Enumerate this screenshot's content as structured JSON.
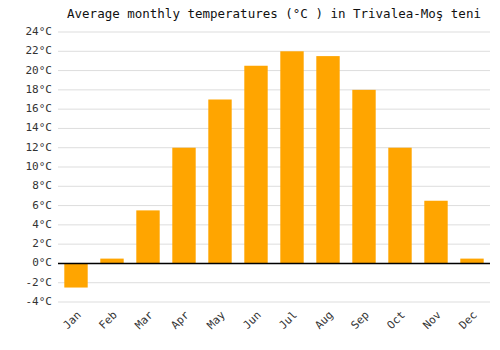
{
  "chart_data": {
    "type": "bar",
    "title": "Average monthly temperatures (°C ) in Trivalea-Moş teni",
    "categories": [
      "Jan",
      "Feb",
      "Mar",
      "Apr",
      "May",
      "Jun",
      "Jul",
      "Aug",
      "Sep",
      "Oct",
      "Nov",
      "Dec"
    ],
    "values": [
      -2.5,
      0.5,
      5.5,
      12.0,
      17.0,
      20.5,
      22.0,
      21.5,
      18.0,
      12.0,
      6.5,
      0.5
    ],
    "color": "#FFA500",
    "ylim": [
      -4,
      24
    ],
    "yticks": [
      {
        "value": -4,
        "label": "-4°C"
      },
      {
        "value": -2,
        "label": "-2°C"
      },
      {
        "value": 0,
        "label": "0°C"
      },
      {
        "value": 2,
        "label": "2°C"
      },
      {
        "value": 4,
        "label": "4°C"
      },
      {
        "value": 6,
        "label": "6°C"
      },
      {
        "value": 8,
        "label": "8°C"
      },
      {
        "value": 10,
        "label": "10°C"
      },
      {
        "value": 12,
        "label": "12°C"
      },
      {
        "value": 14,
        "label": "14°C"
      },
      {
        "value": 16,
        "label": "16°C"
      },
      {
        "value": 18,
        "label": "18°C"
      },
      {
        "value": 20,
        "label": "20°C"
      },
      {
        "value": 22,
        "label": "22°C"
      },
      {
        "value": 24,
        "label": "24°C"
      }
    ],
    "grid": true
  }
}
